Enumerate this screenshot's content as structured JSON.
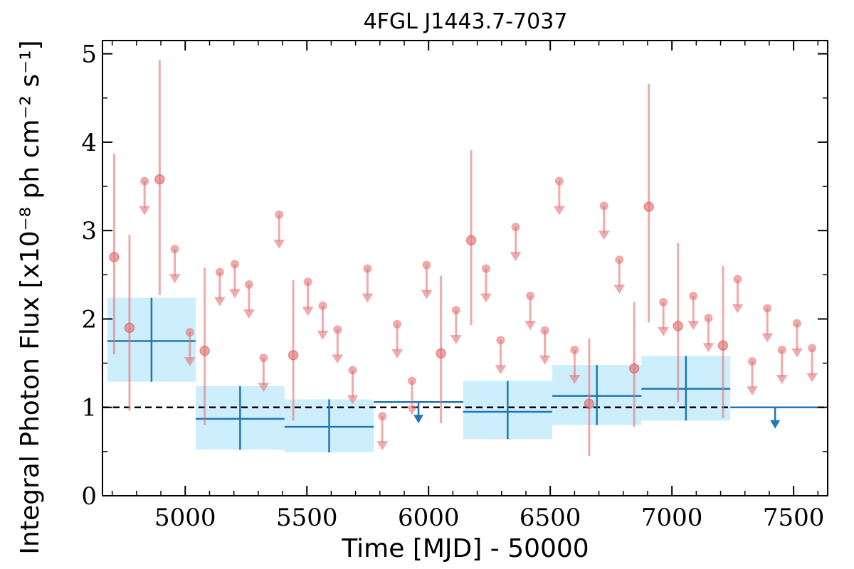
{
  "chart_data": {
    "type": "scatter",
    "title": "4FGL J1443.7-7037",
    "xlabel": "Time [MJD] - 50000",
    "ylabel": "Integral Photon Flux [x10⁻⁸ ph cm⁻² s⁻¹]",
    "xlim": [
      4660,
      7640
    ],
    "ylim": [
      0,
      5.15
    ],
    "x_ticks": [
      5000,
      5500,
      6000,
      6500,
      7000,
      7500
    ],
    "y_ticks": [
      0,
      1,
      2,
      3,
      4,
      5
    ],
    "reference_line": 1.0,
    "colors": {
      "fine": "#e57373",
      "coarse": "#1f77b4",
      "band": "#cdeefc",
      "reference": "#000000"
    },
    "fine_detections": [
      {
        "x": 4708,
        "y": 2.7,
        "lo": 1.6,
        "hi": 3.87
      },
      {
        "x": 4771,
        "y": 1.9,
        "lo": 0.96,
        "hi": 2.95
      },
      {
        "x": 4895,
        "y": 3.58,
        "lo": 2.27,
        "hi": 4.93
      },
      {
        "x": 5080,
        "y": 1.64,
        "lo": 0.8,
        "hi": 2.58
      },
      {
        "x": 5444,
        "y": 1.59,
        "lo": 0.85,
        "hi": 2.44
      },
      {
        "x": 6051,
        "y": 1.61,
        "lo": 0.82,
        "hi": 2.49
      },
      {
        "x": 6175,
        "y": 2.89,
        "lo": 1.93,
        "hi": 3.91
      },
      {
        "x": 6660,
        "y": 1.04,
        "lo": 0.45,
        "hi": 1.78
      },
      {
        "x": 6845,
        "y": 1.44,
        "lo": 0.78,
        "hi": 2.19
      },
      {
        "x": 6905,
        "y": 3.27,
        "lo": 1.96,
        "hi": 4.66
      },
      {
        "x": 7025,
        "y": 1.92,
        "lo": 1.06,
        "hi": 2.86
      },
      {
        "x": 7210,
        "y": 1.7,
        "lo": 0.88,
        "hi": 2.6
      }
    ],
    "fine_upper_limits": [
      {
        "x": 4833,
        "y": 3.56
      },
      {
        "x": 4957,
        "y": 2.79
      },
      {
        "x": 5019,
        "y": 1.85
      },
      {
        "x": 5142,
        "y": 2.53
      },
      {
        "x": 5204,
        "y": 2.62
      },
      {
        "x": 5262,
        "y": 2.39
      },
      {
        "x": 5322,
        "y": 1.56
      },
      {
        "x": 5386,
        "y": 3.18
      },
      {
        "x": 5504,
        "y": 2.42
      },
      {
        "x": 5565,
        "y": 2.15
      },
      {
        "x": 5626,
        "y": 1.88
      },
      {
        "x": 5688,
        "y": 1.42
      },
      {
        "x": 5749,
        "y": 2.57
      },
      {
        "x": 5810,
        "y": 0.9
      },
      {
        "x": 5871,
        "y": 1.94
      },
      {
        "x": 5932,
        "y": 1.3
      },
      {
        "x": 5992,
        "y": 2.61
      },
      {
        "x": 6113,
        "y": 2.1
      },
      {
        "x": 6296,
        "y": 1.76
      },
      {
        "x": 6236,
        "y": 2.57
      },
      {
        "x": 6358,
        "y": 3.04
      },
      {
        "x": 6418,
        "y": 2.26
      },
      {
        "x": 6478,
        "y": 1.87
      },
      {
        "x": 6537,
        "y": 3.56
      },
      {
        "x": 6600,
        "y": 1.65
      },
      {
        "x": 6721,
        "y": 3.28
      },
      {
        "x": 6784,
        "y": 2.67
      },
      {
        "x": 6965,
        "y": 2.19
      },
      {
        "x": 7088,
        "y": 2.26
      },
      {
        "x": 7150,
        "y": 2.01
      },
      {
        "x": 7270,
        "y": 2.45
      },
      {
        "x": 7330,
        "y": 1.52
      },
      {
        "x": 7392,
        "y": 2.12
      },
      {
        "x": 7452,
        "y": 1.65
      },
      {
        "x": 7514,
        "y": 1.95
      },
      {
        "x": 7576,
        "y": 1.67
      }
    ],
    "coarse_detections": [
      {
        "x0": 4680,
        "x1": 5043,
        "y": 1.75,
        "lo": 1.29,
        "hi": 2.24
      },
      {
        "x0": 5043,
        "x1": 5408,
        "y": 0.87,
        "lo": 0.52,
        "hi": 1.24
      },
      {
        "x0": 5408,
        "x1": 5775,
        "y": 0.78,
        "lo": 0.49,
        "hi": 1.09
      },
      {
        "x0": 6142,
        "x1": 6508,
        "y": 0.95,
        "lo": 0.64,
        "hi": 1.3
      },
      {
        "x0": 6508,
        "x1": 6875,
        "y": 1.13,
        "lo": 0.8,
        "hi": 1.48
      },
      {
        "x0": 6875,
        "x1": 7240,
        "y": 1.21,
        "lo": 0.85,
        "hi": 1.58
      }
    ],
    "coarse_upper_limits": [
      {
        "x0": 5775,
        "x1": 6142,
        "y": 1.06
      },
      {
        "x0": 7240,
        "x1": 7608,
        "y": 1.0
      }
    ]
  }
}
